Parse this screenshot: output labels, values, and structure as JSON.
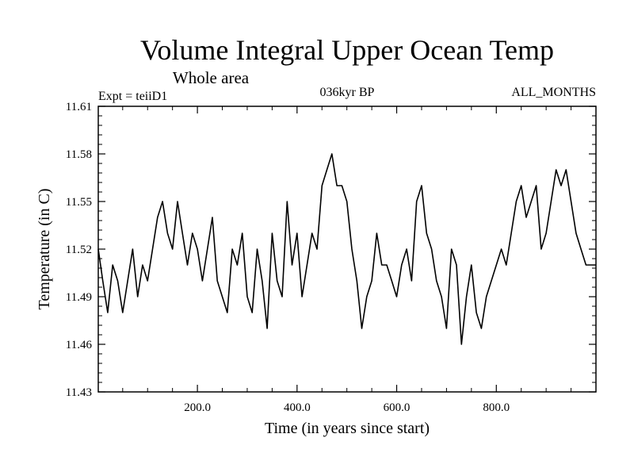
{
  "chart_data": {
    "type": "line",
    "title": "Volume Integral Upper Ocean Temp",
    "subtitle": "Whole area",
    "expt_label": "Expt = teiiD1",
    "period_label": "036kyr BP",
    "months_label": "ALL_MONTHS",
    "xlabel": "Time (in years since start)",
    "ylabel": "Temperature (in C)",
    "xlim": [
      1,
      1000
    ],
    "ylim": [
      11.43,
      11.61
    ],
    "x_ticks": [
      200,
      400,
      600,
      800
    ],
    "x_tick_labels": [
      "200.0",
      "400.0",
      "600.0",
      "800.0"
    ],
    "y_ticks": [
      11.43,
      11.46,
      11.49,
      11.52,
      11.55,
      11.58,
      11.61
    ],
    "y_tick_labels": [
      "11.43",
      "11.46",
      "11.49",
      "11.52",
      "11.55",
      "11.58",
      "11.61"
    ],
    "grid": false,
    "series": [
      {
        "x": [
          1,
          10,
          20,
          30,
          40,
          50,
          60,
          70,
          80,
          90,
          100,
          110,
          120,
          130,
          140,
          150,
          160,
          170,
          180,
          190,
          200,
          210,
          220,
          230,
          240,
          250,
          260,
          270,
          280,
          290,
          300,
          310,
          320,
          330,
          340,
          350,
          360,
          370,
          380,
          390,
          400,
          410,
          420,
          430,
          440,
          450,
          460,
          470,
          480,
          490,
          500,
          510,
          520,
          530,
          540,
          550,
          560,
          570,
          580,
          590,
          600,
          610,
          620,
          630,
          640,
          650,
          660,
          670,
          680,
          690,
          700,
          710,
          720,
          730,
          740,
          750,
          760,
          770,
          780,
          790,
          800,
          810,
          820,
          830,
          840,
          850,
          860,
          870,
          880,
          890,
          900,
          910,
          920,
          930,
          940,
          950,
          960,
          970,
          980,
          990,
          1000
        ],
        "y": [
          11.52,
          11.5,
          11.48,
          11.51,
          11.5,
          11.48,
          11.5,
          11.52,
          11.49,
          11.51,
          11.5,
          11.52,
          11.54,
          11.55,
          11.53,
          11.52,
          11.55,
          11.53,
          11.51,
          11.53,
          11.52,
          11.5,
          11.52,
          11.54,
          11.5,
          11.49,
          11.48,
          11.52,
          11.51,
          11.53,
          11.49,
          11.48,
          11.52,
          11.5,
          11.47,
          11.53,
          11.5,
          11.49,
          11.55,
          11.51,
          11.53,
          11.49,
          11.51,
          11.53,
          11.52,
          11.56,
          11.57,
          11.58,
          11.56,
          11.56,
          11.55,
          11.52,
          11.5,
          11.47,
          11.49,
          11.5,
          11.53,
          11.51,
          11.51,
          11.5,
          11.49,
          11.51,
          11.52,
          11.5,
          11.55,
          11.56,
          11.53,
          11.52,
          11.5,
          11.49,
          11.47,
          11.52,
          11.51,
          11.46,
          11.49,
          11.51,
          11.48,
          11.47,
          11.49,
          11.5,
          11.51,
          11.52,
          11.51,
          11.53,
          11.55,
          11.56,
          11.54,
          11.55,
          11.56,
          11.52,
          11.53,
          11.55,
          11.57,
          11.56,
          11.57,
          11.55,
          11.53,
          11.52,
          11.51,
          11.51,
          11.51
        ]
      }
    ]
  }
}
